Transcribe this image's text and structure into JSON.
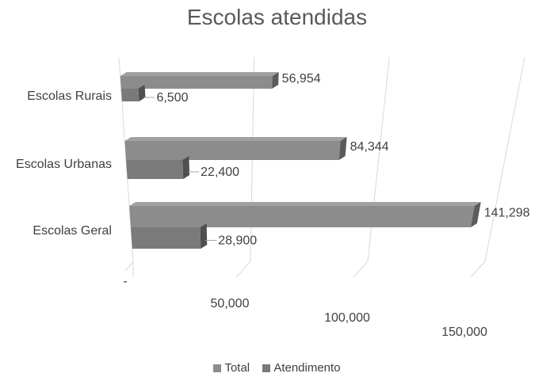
{
  "chart_data": {
    "type": "bar",
    "orientation": "horizontal",
    "style": "3d",
    "title": "Escolas atendidas",
    "categories": [
      "Escolas Rurais",
      "Escolas Urbanas",
      "Escolas Geral"
    ],
    "series": [
      {
        "name": "Total",
        "values": [
          56954,
          84344,
          141298
        ],
        "labels": [
          "56,954",
          "84,344",
          "141,298"
        ],
        "color": "#8c8c8c"
      },
      {
        "name": "Atendimento",
        "values": [
          6500,
          22400,
          28900
        ],
        "labels": [
          "6,500",
          "22,400",
          "28,900"
        ],
        "color": "#7a7a7a"
      }
    ],
    "x_ticks": [
      {
        "value": 0,
        "label": "-"
      },
      {
        "value": 50000,
        "label": "50,000"
      },
      {
        "value": 100000,
        "label": "100,000"
      },
      {
        "value": 150000,
        "label": "150,000"
      }
    ],
    "xlim": [
      0,
      150000
    ],
    "grid": true,
    "legend_position": "bottom"
  }
}
